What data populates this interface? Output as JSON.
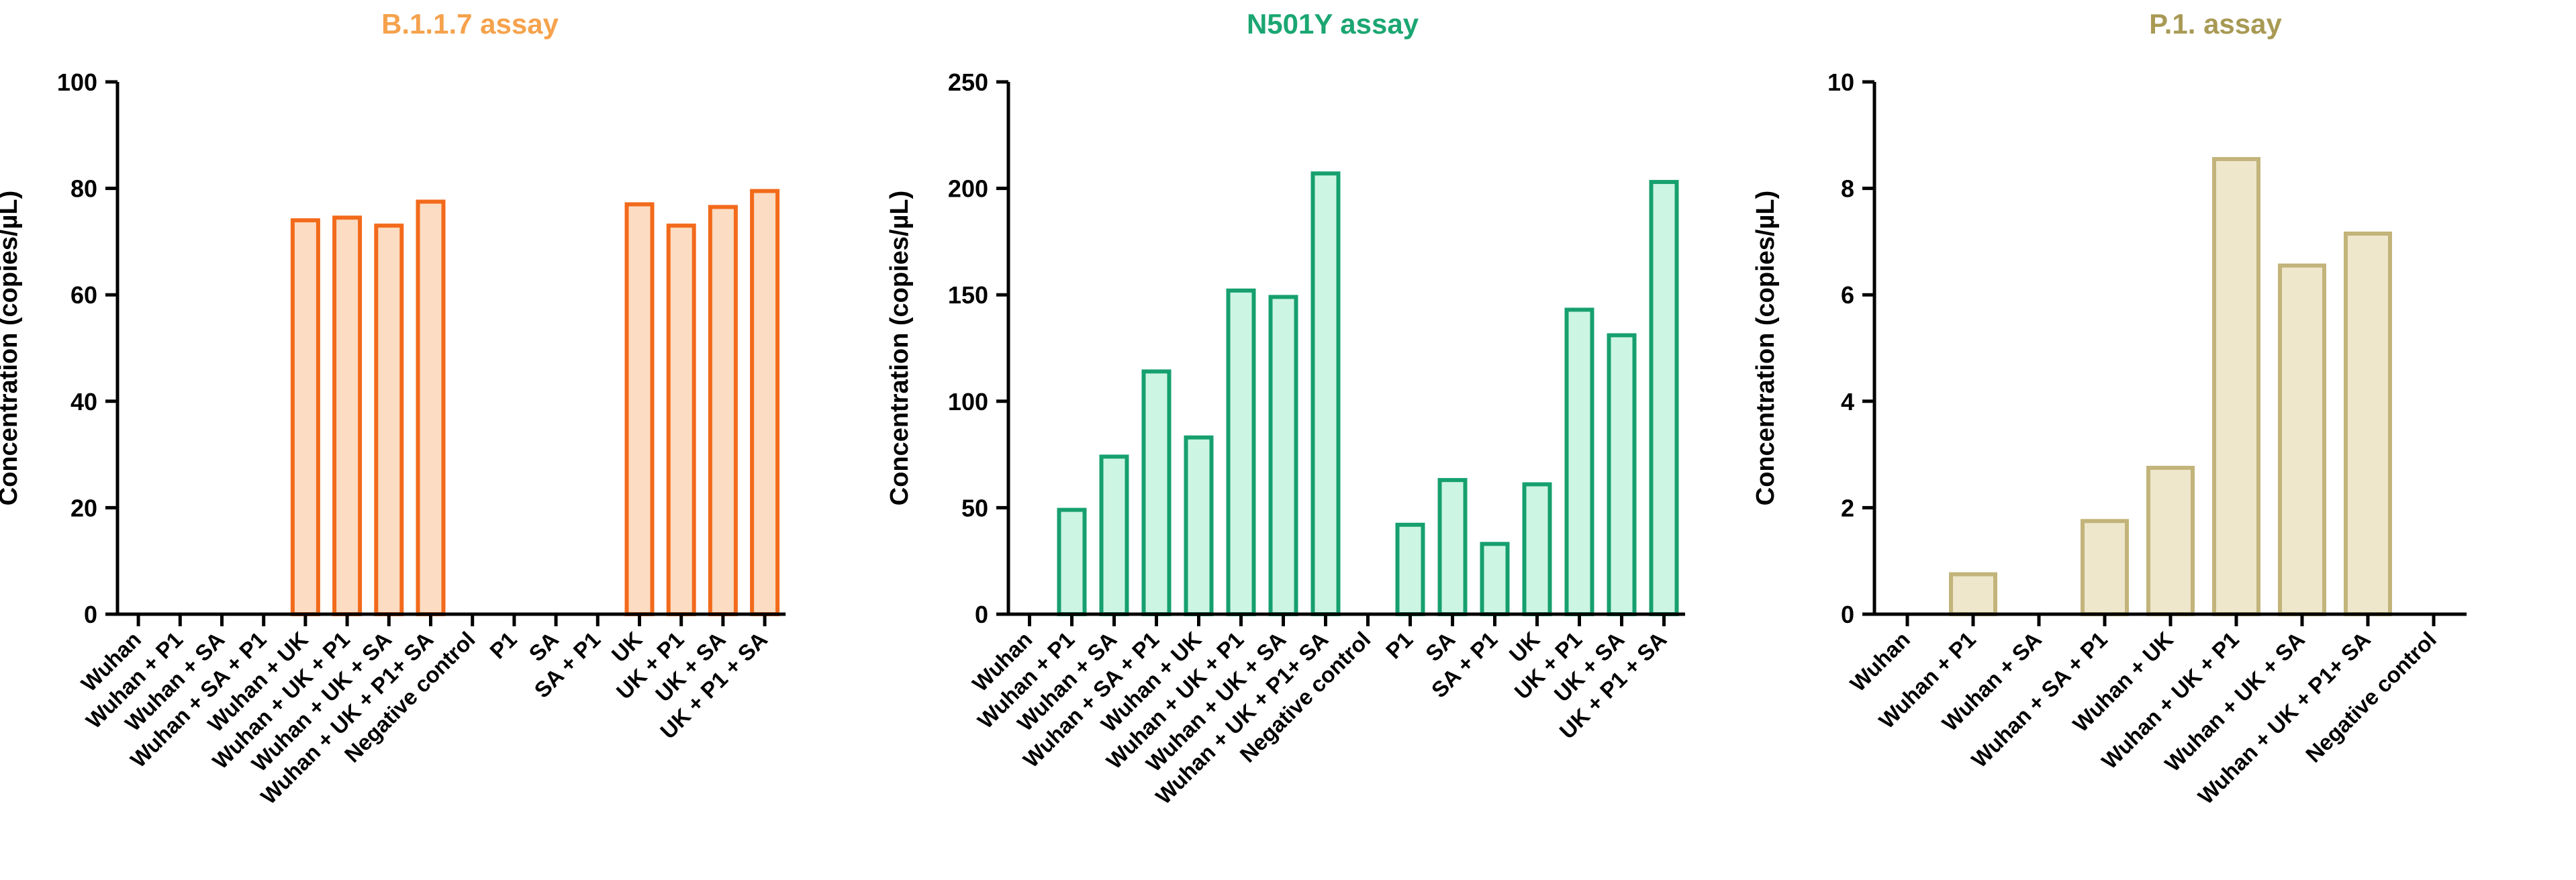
{
  "chart_data": [
    {
      "type": "bar",
      "title": "B.1.1.7 assay",
      "title_color": "#F5A24C",
      "bar_stroke": "#F26A1B",
      "bar_fill": "#FCDCC2",
      "ylabel": "Concentration (copies/µL)",
      "ylim": [
        0,
        100
      ],
      "yticks": [
        0,
        20,
        40,
        60,
        80,
        100
      ],
      "categories": [
        "Wuhan",
        "Wuhan + P1",
        "Wuhan + SA",
        "Wuhan + SA + P1",
        "Wuhan + UK",
        "Wuhan + UK + P1",
        "Wuhan + UK + SA",
        "Wuhan + UK + P1+ SA",
        "Negative control",
        "P1",
        "SA",
        "SA + P1",
        "UK",
        "UK + P1",
        "UK + SA",
        "UK + P1 + SA"
      ],
      "values": [
        0,
        0,
        0,
        0,
        74,
        74.5,
        73,
        77.5,
        0,
        0,
        0,
        0,
        77,
        73,
        76.5,
        79.5
      ]
    },
    {
      "type": "bar",
      "title": "N501Y assay",
      "title_color": "#1BA672",
      "bar_stroke": "#16A06F",
      "bar_fill": "#CDF5E4",
      "ylabel": "Concentration (copies/µL)",
      "ylim": [
        0,
        250
      ],
      "yticks": [
        0,
        50,
        100,
        150,
        200,
        250
      ],
      "categories": [
        "Wuhan",
        "Wuhan + P1",
        "Wuhan + SA",
        "Wuhan + SA + P1",
        "Wuhan + UK",
        "Wuhan + UK + P1",
        "Wuhan + UK + SA",
        "Wuhan + UK + P1+ SA",
        "Negative control",
        "P1",
        "SA",
        "SA + P1",
        "UK",
        "UK + P1",
        "UK + SA",
        "UK + P1 + SA"
      ],
      "values": [
        0,
        49,
        74,
        114,
        83,
        152,
        149,
        207,
        0,
        42,
        63,
        33,
        61,
        143,
        131,
        203
      ]
    },
    {
      "type": "bar",
      "title": "P.1. assay",
      "title_color": "#A89A55",
      "bar_stroke": "#C2B47A",
      "bar_fill": "#EEE7CC",
      "ylabel": "Concentration (copies/µL)",
      "ylim": [
        0,
        10
      ],
      "yticks": [
        0,
        2,
        4,
        6,
        8,
        10
      ],
      "categories": [
        "Wuhan",
        "Wuhan + P1",
        "Wuhan + SA",
        "Wuhan + SA + P1",
        "Wuhan + UK",
        "Wuhan + UK + P1",
        "Wuhan + UK + SA",
        "Wuhan + UK + P1+ SA",
        "Negative control"
      ],
      "values": [
        0,
        0.75,
        0,
        1.75,
        2.75,
        8.55,
        6.55,
        7.15,
        0
      ]
    }
  ]
}
